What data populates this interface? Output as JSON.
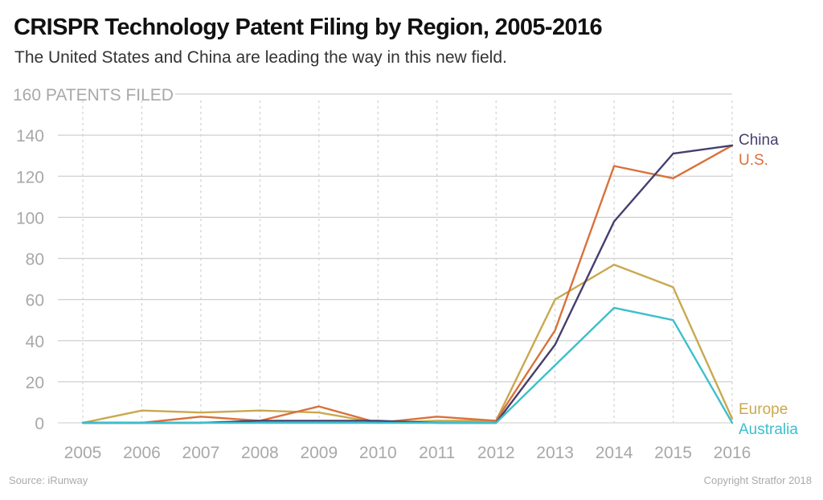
{
  "header": {
    "title": "CRISPR Technology Patent Filing by Region, 2005-2016",
    "subtitle": "The United States and China are leading the way in this new field."
  },
  "footer": {
    "source": "Source: iRunway",
    "copyright": "Copyright Stratfor 2018"
  },
  "chart_data": {
    "type": "line",
    "title": "CRISPR Technology Patent Filing by Region, 2005-2016",
    "subtitle": "The United States and China are leading the way in this new field.",
    "xlabel": "",
    "ylabel": "PATENTS FILED",
    "top_tick_label": "160 PATENTS FILED",
    "ylim": [
      0,
      160
    ],
    "yticks": [
      0,
      20,
      40,
      60,
      80,
      100,
      120,
      140,
      160
    ],
    "ytick_labels": [
      "0",
      "20",
      "40",
      "60",
      "80",
      "100",
      "120",
      "140",
      "160 PATENTS FILED"
    ],
    "x": [
      "2005",
      "2006",
      "2007",
      "2008",
      "2009",
      "2010",
      "2011",
      "2012",
      "2013",
      "2014",
      "2015",
      "2016"
    ],
    "grid": true,
    "legend": "inline-right",
    "series": [
      {
        "name": "Europe",
        "color": "#c9a84f",
        "values": [
          0,
          6,
          5,
          6,
          5,
          0,
          1,
          1,
          60,
          77,
          66,
          2
        ]
      },
      {
        "name": "U.S.",
        "color": "#d9713a",
        "values": [
          0,
          0,
          3,
          1,
          8,
          0,
          3,
          1,
          45,
          125,
          119,
          135
        ]
      },
      {
        "name": "China",
        "color": "#453f6e",
        "values": [
          0,
          0,
          0,
          1,
          1,
          1,
          0,
          0,
          38,
          98,
          131,
          135
        ]
      },
      {
        "name": "Australia",
        "color": "#3cbfcc",
        "values": [
          0,
          0,
          0,
          0,
          0,
          0,
          0,
          0,
          28,
          56,
          50,
          0
        ]
      }
    ],
    "label_order_top": [
      "China",
      "U.S."
    ],
    "label_order_bottom": [
      "Europe",
      "Australia"
    ]
  }
}
